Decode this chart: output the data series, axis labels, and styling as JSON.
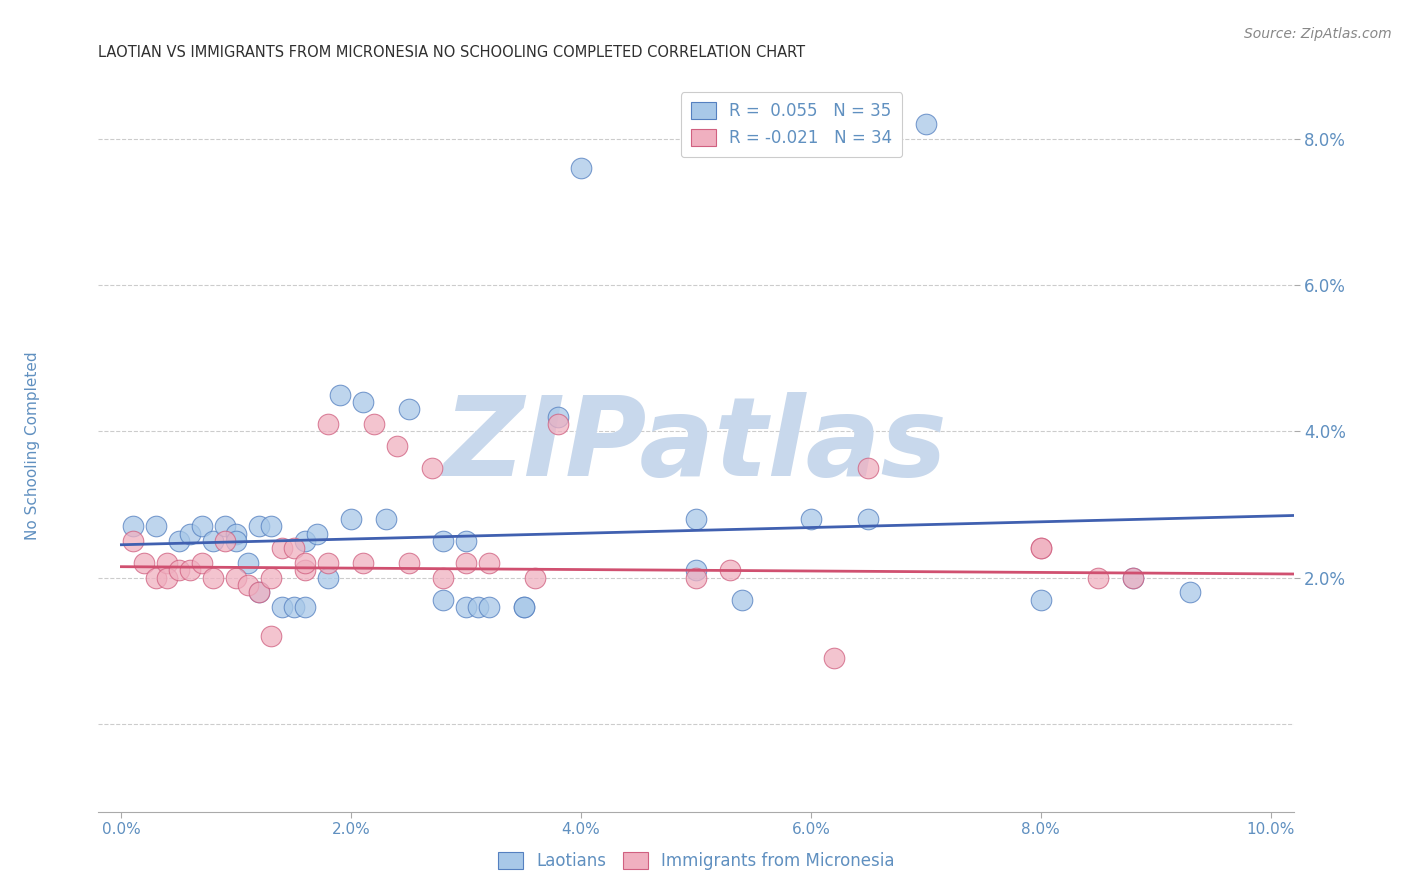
{
  "title": "LAOTIAN VS IMMIGRANTS FROM MICRONESIA NO SCHOOLING COMPLETED CORRELATION CHART",
  "source": "Source: ZipAtlas.com",
  "ylabel": "No Schooling Completed",
  "watermark": "ZIPatlas",
  "xlim": [
    -0.002,
    0.102
  ],
  "ylim": [
    -0.012,
    0.088
  ],
  "xticks": [
    0.0,
    0.02,
    0.04,
    0.06,
    0.08,
    0.1
  ],
  "xtick_labels": [
    "0.0%",
    "2.0%",
    "4.0%",
    "6.0%",
    "8.0%",
    "10.0%"
  ],
  "right_yticks": [
    0.02,
    0.04,
    0.06,
    0.08
  ],
  "right_ytick_labels": [
    "2.0%",
    "4.0%",
    "6.0%",
    "8.0%"
  ],
  "hgrid_lines": [
    0.0,
    0.02,
    0.04,
    0.06,
    0.08
  ],
  "blue_color": "#a8c8e8",
  "pink_color": "#f0b0c0",
  "blue_edge_color": "#5580c0",
  "pink_edge_color": "#d06080",
  "blue_line_color": "#4060b0",
  "pink_line_color": "#d05070",
  "title_color": "#303030",
  "axis_color": "#6090c0",
  "watermark_color": "#c8d8ec",
  "blue_scatter": [
    [
      0.001,
      0.027
    ],
    [
      0.003,
      0.027
    ],
    [
      0.005,
      0.025
    ],
    [
      0.006,
      0.026
    ],
    [
      0.007,
      0.027
    ],
    [
      0.008,
      0.025
    ],
    [
      0.009,
      0.027
    ],
    [
      0.01,
      0.026
    ],
    [
      0.01,
      0.025
    ],
    [
      0.011,
      0.022
    ],
    [
      0.012,
      0.027
    ],
    [
      0.012,
      0.018
    ],
    [
      0.013,
      0.027
    ],
    [
      0.014,
      0.016
    ],
    [
      0.015,
      0.016
    ],
    [
      0.016,
      0.025
    ],
    [
      0.016,
      0.016
    ],
    [
      0.017,
      0.026
    ],
    [
      0.018,
      0.02
    ],
    [
      0.019,
      0.045
    ],
    [
      0.02,
      0.028
    ],
    [
      0.021,
      0.044
    ],
    [
      0.023,
      0.028
    ],
    [
      0.025,
      0.043
    ],
    [
      0.028,
      0.017
    ],
    [
      0.028,
      0.025
    ],
    [
      0.03,
      0.025
    ],
    [
      0.03,
      0.016
    ],
    [
      0.031,
      0.016
    ],
    [
      0.032,
      0.016
    ],
    [
      0.035,
      0.016
    ],
    [
      0.035,
      0.016
    ],
    [
      0.038,
      0.042
    ],
    [
      0.04,
      0.076
    ],
    [
      0.05,
      0.028
    ],
    [
      0.05,
      0.021
    ],
    [
      0.054,
      0.017
    ],
    [
      0.06,
      0.028
    ],
    [
      0.065,
      0.028
    ],
    [
      0.07,
      0.082
    ],
    [
      0.08,
      0.017
    ],
    [
      0.088,
      0.02
    ],
    [
      0.093,
      0.018
    ]
  ],
  "pink_scatter": [
    [
      0.001,
      0.025
    ],
    [
      0.002,
      0.022
    ],
    [
      0.003,
      0.02
    ],
    [
      0.004,
      0.022
    ],
    [
      0.004,
      0.02
    ],
    [
      0.005,
      0.021
    ],
    [
      0.006,
      0.021
    ],
    [
      0.007,
      0.022
    ],
    [
      0.008,
      0.02
    ],
    [
      0.009,
      0.025
    ],
    [
      0.01,
      0.02
    ],
    [
      0.011,
      0.019
    ],
    [
      0.012,
      0.018
    ],
    [
      0.013,
      0.02
    ],
    [
      0.013,
      0.012
    ],
    [
      0.014,
      0.024
    ],
    [
      0.015,
      0.024
    ],
    [
      0.016,
      0.021
    ],
    [
      0.016,
      0.022
    ],
    [
      0.018,
      0.041
    ],
    [
      0.018,
      0.022
    ],
    [
      0.021,
      0.022
    ],
    [
      0.022,
      0.041
    ],
    [
      0.024,
      0.038
    ],
    [
      0.025,
      0.022
    ],
    [
      0.027,
      0.035
    ],
    [
      0.028,
      0.02
    ],
    [
      0.03,
      0.022
    ],
    [
      0.032,
      0.022
    ],
    [
      0.036,
      0.02
    ],
    [
      0.038,
      0.041
    ],
    [
      0.05,
      0.02
    ],
    [
      0.053,
      0.021
    ],
    [
      0.062,
      0.009
    ],
    [
      0.065,
      0.035
    ],
    [
      0.08,
      0.024
    ],
    [
      0.08,
      0.024
    ],
    [
      0.085,
      0.02
    ],
    [
      0.088,
      0.02
    ]
  ],
  "blue_trend": [
    0.0,
    0.102,
    0.0245,
    0.0285
  ],
  "pink_trend": [
    0.0,
    0.102,
    0.0215,
    0.0205
  ]
}
